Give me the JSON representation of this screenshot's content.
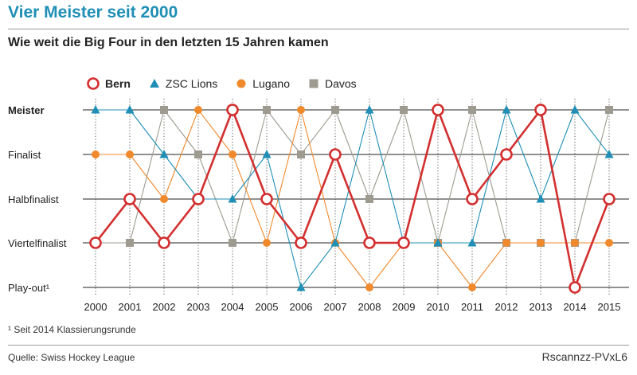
{
  "header": {
    "title": "Vier Meister seit 2000",
    "subtitle": "Wie weit die Big Four in den letzten 15 Jahren kamen"
  },
  "legend": [
    {
      "name": "Bern",
      "marker": "circle-open",
      "color": "#d32f2f"
    },
    {
      "name": "ZSC Lions",
      "marker": "triangle",
      "color": "#1f8fb5"
    },
    {
      "name": "Lugano",
      "marker": "circle",
      "color": "#f0892c"
    },
    {
      "name": "Davos",
      "marker": "square",
      "color": "#9d9a90"
    }
  ],
  "chart_data": {
    "type": "line",
    "categories": [
      "Meister",
      "Finalist",
      "Halbfinalist",
      "Viertelfinalist",
      "Play-out¹"
    ],
    "x": [
      "2000",
      "2001",
      "2002",
      "2003",
      "2004",
      "2005",
      "2006",
      "2007",
      "2008",
      "2009",
      "2010",
      "2011",
      "2012",
      "2013",
      "2014",
      "2015"
    ],
    "series": [
      {
        "name": "Bern",
        "color": "#d32f2f",
        "values": [
          "Viertelfinalist",
          "Halbfinalist",
          "Viertelfinalist",
          "Halbfinalist",
          "Meister",
          "Halbfinalist",
          "Viertelfinalist",
          "Finalist",
          "Viertelfinalist",
          "Viertelfinalist",
          "Meister",
          "Halbfinalist",
          "Finalist",
          "Meister",
          "Play-out¹",
          "Halbfinalist"
        ]
      },
      {
        "name": "ZSC Lions",
        "color": "#1f8fb5",
        "values": [
          "Meister",
          "Meister",
          "Finalist",
          "Halbfinalist",
          "Halbfinalist",
          "Finalist",
          "Play-out¹",
          "Viertelfinalist",
          "Meister",
          "Viertelfinalist",
          "Viertelfinalist",
          "Viertelfinalist",
          "Meister",
          "Halbfinalist",
          "Meister",
          "Finalist"
        ]
      },
      {
        "name": "Lugano",
        "color": "#f0892c",
        "values": [
          "Finalist",
          "Finalist",
          "Halbfinalist",
          "Meister",
          "Finalist",
          "Viertelfinalist",
          "Meister",
          "Viertelfinalist",
          "Play-out¹",
          "Viertelfinalist",
          "Viertelfinalist",
          "Play-out¹",
          "Viertelfinalist",
          "Viertelfinalist",
          "Viertelfinalist",
          "Viertelfinalist"
        ]
      },
      {
        "name": "Davos",
        "color": "#9d9a90",
        "values": [
          "Viertelfinalist",
          "Viertelfinalist",
          "Meister",
          "Finalist",
          "Viertelfinalist",
          "Meister",
          "Finalist",
          "Meister",
          "Halbfinalist",
          "Meister",
          "Viertelfinalist",
          "Meister",
          "Viertelfinalist",
          "Viertelfinalist",
          "Viertelfinalist",
          "Meister"
        ]
      }
    ]
  },
  "footnote": "¹ Seit 2014 Klassierungsrunde",
  "source": "Quelle: Swiss Hockey League",
  "credit": "Rscannzz-PVxL6"
}
